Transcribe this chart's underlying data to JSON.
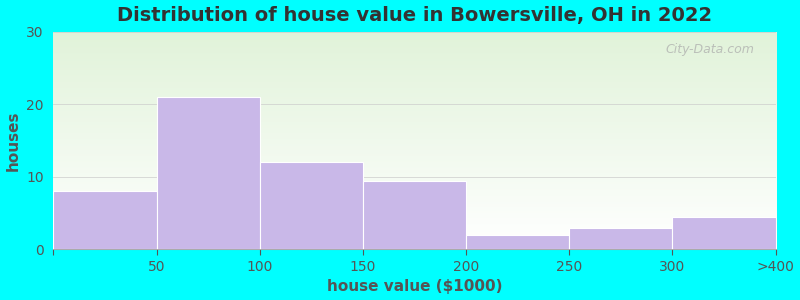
{
  "title": "Distribution of house value in Bowersville, OH in 2022",
  "xlabel": "house value ($1000)",
  "ylabel": "houses",
  "categories": [
    "50",
    "100",
    "150",
    "200",
    "250",
    "300",
    ">400"
  ],
  "values": [
    8,
    21,
    12,
    9.5,
    2,
    3,
    4.5
  ],
  "bar_color": "#c9b8e8",
  "bar_edgecolor": "#c9b8e8",
  "ylim": [
    0,
    30
  ],
  "yticks": [
    0,
    10,
    20,
    30
  ],
  "bg_color": "#00ffff",
  "title_fontsize": 14,
  "axis_label_fontsize": 11,
  "tick_fontsize": 10,
  "watermark": "City-Data.com"
}
